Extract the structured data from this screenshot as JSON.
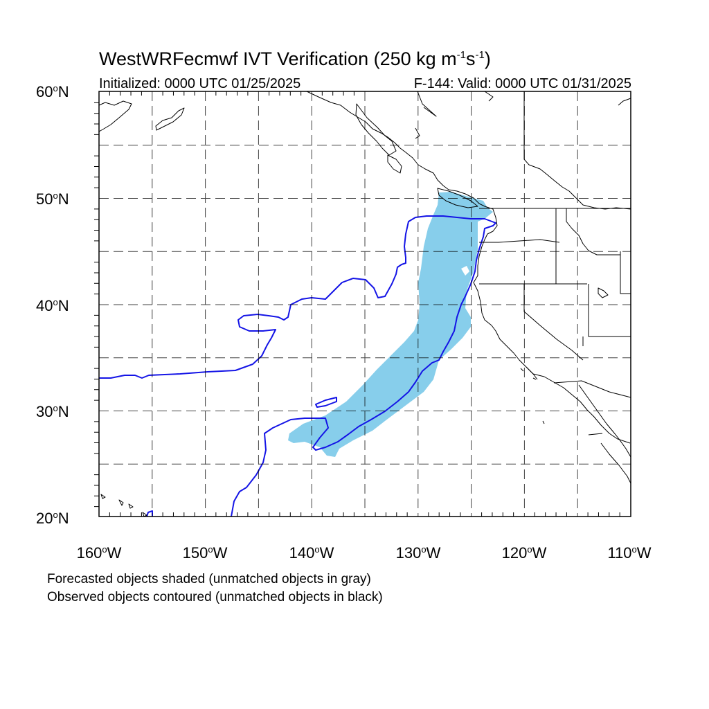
{
  "title": {
    "main": "WestWRFecmwf IVT Verification (250 kg m",
    "exp1": "-1",
    "mid": "s",
    "exp2": "-1",
    "end": ")"
  },
  "subtitle": {
    "left": "Initialized: 0000 UTC 01/25/2025",
    "right": "F-144: Valid: 0000 UTC 01/31/2025"
  },
  "lat_labels": [
    {
      "value": "60",
      "suffix": "N"
    },
    {
      "value": "50",
      "suffix": "N"
    },
    {
      "value": "40",
      "suffix": "N"
    },
    {
      "value": "30",
      "suffix": "N"
    },
    {
      "value": "20",
      "suffix": "N"
    }
  ],
  "lon_labels": [
    {
      "value": "160",
      "suffix": "W"
    },
    {
      "value": "150",
      "suffix": "W"
    },
    {
      "value": "140",
      "suffix": "W"
    },
    {
      "value": "130",
      "suffix": "W"
    },
    {
      "value": "120",
      "suffix": "W"
    },
    {
      "value": "110",
      "suffix": "W"
    }
  ],
  "notes": [
    "Forecasted objects shaded (unmatched objects in gray)",
    "Observed objects contoured (unmatched objects in black)"
  ],
  "map": {
    "lon_range": [
      -160,
      -110
    ],
    "lat_range": [
      20,
      60
    ],
    "grid_spacing_deg": 5,
    "forecast_fill_color": "#87ceeb",
    "observed_contour_color": "#1414e6"
  }
}
